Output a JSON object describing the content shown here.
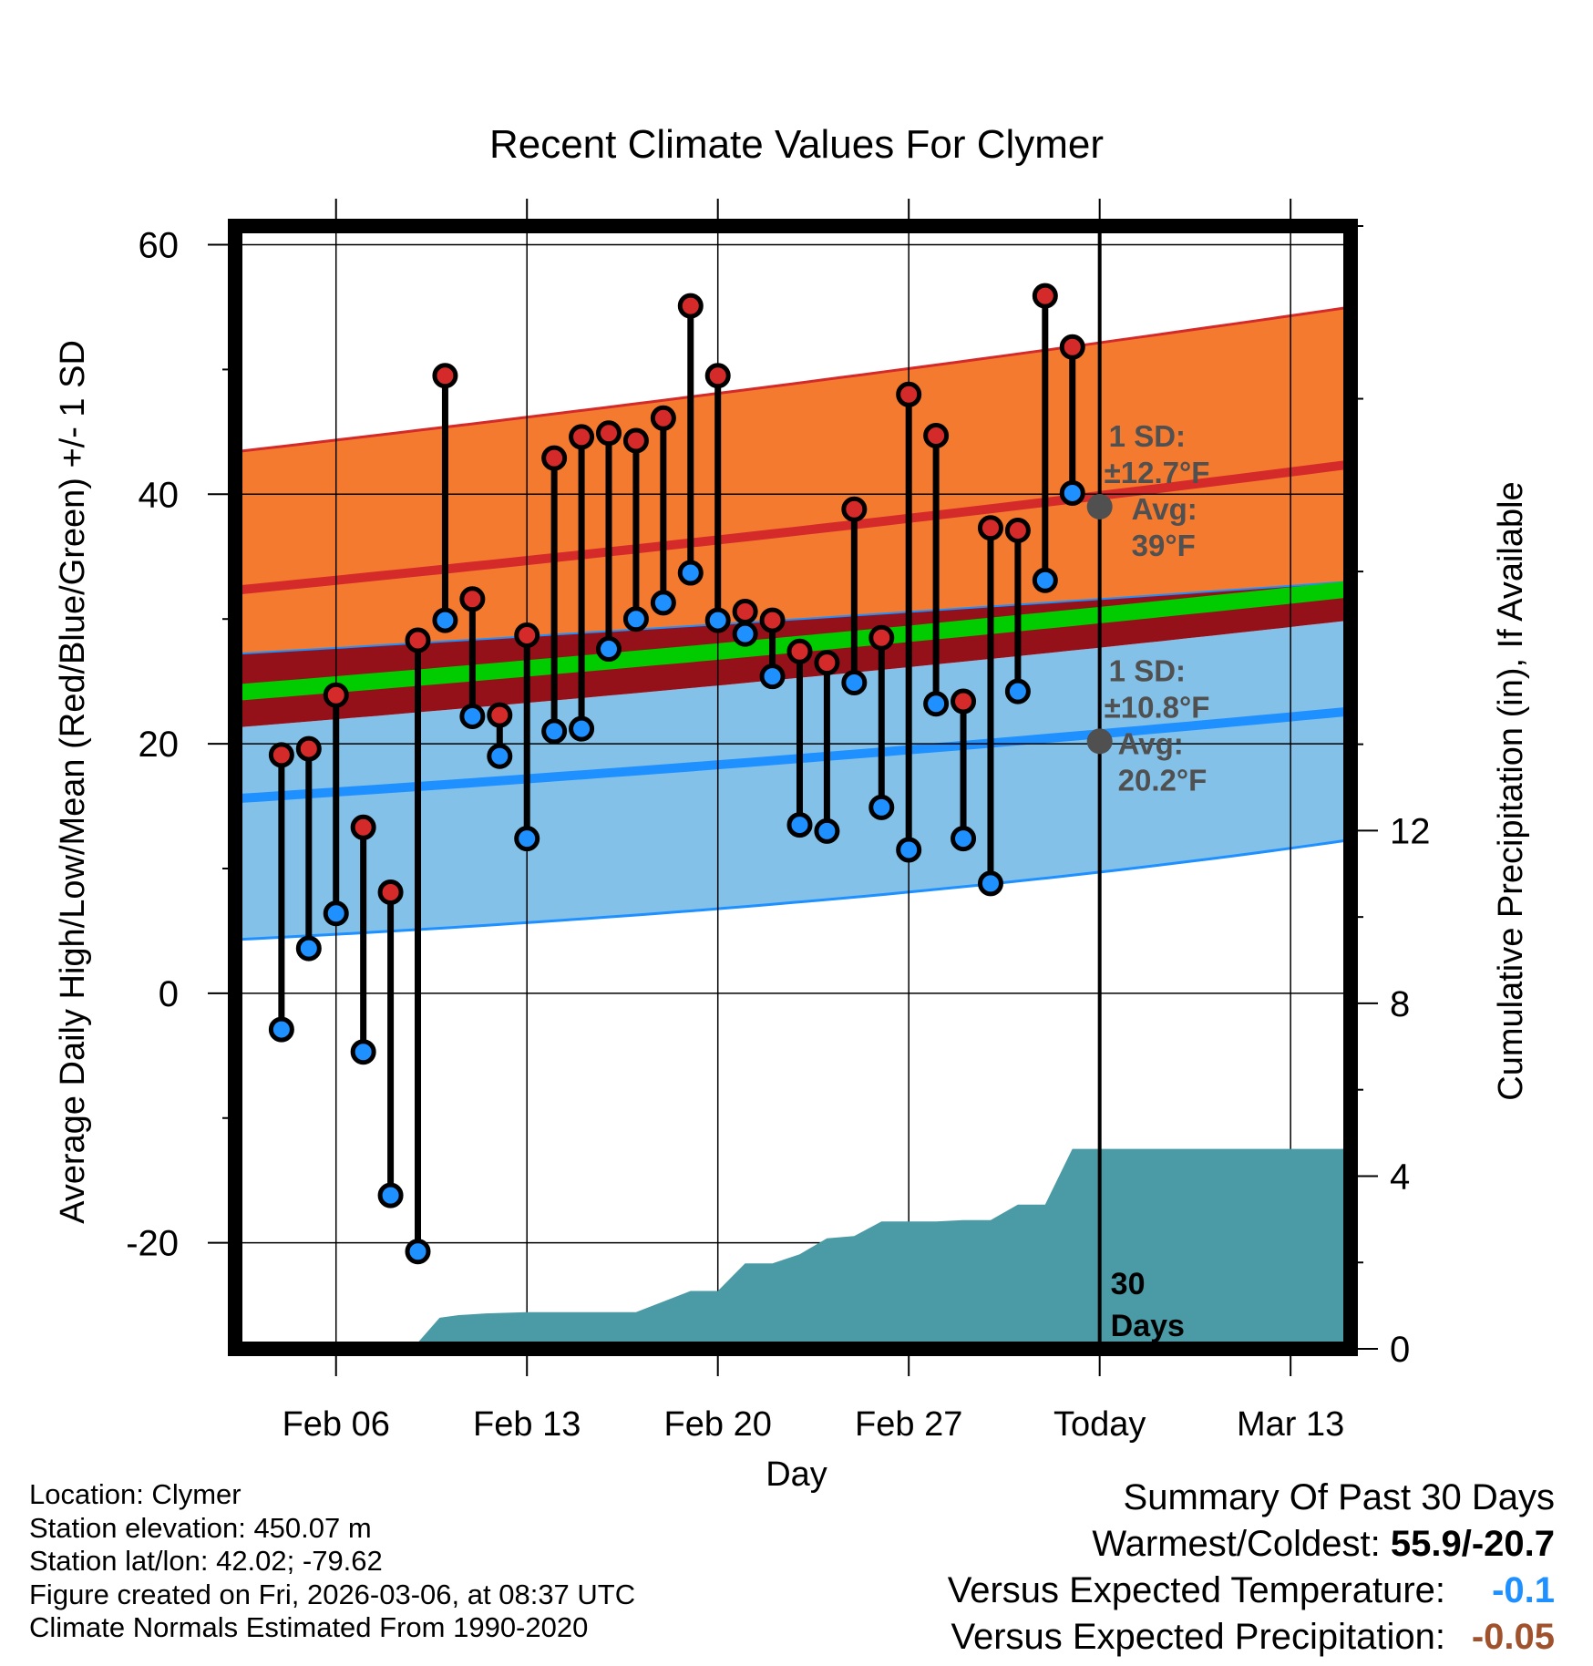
{
  "chart_data": {
    "type": "line",
    "title": "Recent Climate Values For Clymer",
    "xlabel": "Day",
    "ylabel": "Average Daily High/Low/Mean (Red/Blue/Green) +/- 1 SD",
    "y2label": "Cumulative Precipitation (in), If Available",
    "ylim": [
      -28.5,
      61.5
    ],
    "y2lim": [
      0,
      26
    ],
    "yticks": [
      "60",
      "40",
      "20",
      "0",
      "-20"
    ],
    "yticks_values": [
      60,
      40,
      20,
      0,
      -20
    ],
    "y2ticks": [
      "12",
      "8",
      "4",
      "0"
    ],
    "y2ticks_values": [
      12,
      8,
      4,
      0
    ],
    "xlim": [
      2.3,
      43.2
    ],
    "xticks": [
      "Feb 06",
      "Feb 13",
      "Feb 20",
      "Feb 27",
      "Today",
      "Mar 13"
    ],
    "xticks_days": [
      6,
      13,
      20,
      27,
      34,
      41
    ],
    "today_day": 34,
    "colors": {
      "high_band": "#f47a30",
      "high_line": "#d42a2a",
      "low_band": "#83c1e8",
      "low_line": "#1e90ff",
      "mean_band": "#95111a",
      "mean_line": "#00cc00",
      "precip": "#4a9ba6",
      "high_point": "#d42a2a",
      "low_point": "#1e90ff",
      "annotation": "#505050"
    },
    "normals": {
      "days": [
        2.3,
        43.2
      ],
      "high_avg": [
        32.3,
        42.4
      ],
      "high_upper": [
        43.4,
        55.0
      ],
      "low_avg": [
        15.6,
        22.6
      ],
      "low_lower": [
        4.3,
        12.3
      ],
      "mean_avg": [
        24.1,
        32.4
      ],
      "mean_upper": [
        27.2,
        33.0
      ],
      "mean_lower": [
        21.3,
        29.9
      ]
    },
    "daily": {
      "days": [
        4,
        5,
        6,
        7,
        8,
        9,
        10,
        11,
        12,
        13,
        14,
        15,
        16,
        17,
        18,
        19,
        20,
        21,
        22,
        23,
        24,
        25,
        26,
        27,
        28,
        29,
        30,
        31,
        32,
        33
      ],
      "highs": [
        19.1,
        19.6,
        23.9,
        13.3,
        8.1,
        28.3,
        49.5,
        31.6,
        22.3,
        28.7,
        42.9,
        44.6,
        44.9,
        44.3,
        46.1,
        55.1,
        49.5,
        30.6,
        29.9,
        27.4,
        26.5,
        38.8,
        28.5,
        48.0,
        44.7,
        23.4,
        37.3,
        37.1,
        55.9,
        51.8
      ],
      "lows": [
        -2.9,
        3.6,
        6.4,
        -4.7,
        -16.2,
        -20.7,
        29.9,
        22.2,
        19.0,
        12.4,
        21.0,
        21.2,
        27.6,
        30.0,
        31.3,
        33.7,
        29.9,
        28.8,
        25.4,
        13.5,
        13.0,
        24.9,
        14.9,
        11.5,
        23.2,
        12.4,
        8.8,
        24.2,
        33.1,
        40.1
      ]
    },
    "precip": {
      "days": [
        2.3,
        5.5,
        8.8,
        9.8,
        10.5,
        11.5,
        13.0,
        15.0,
        17.0,
        19.0,
        20.0,
        21.0,
        22.0,
        23.0,
        24.0,
        25.0,
        26.0,
        27.0,
        28.0,
        29.0,
        30.0,
        31.0,
        32.0,
        33.0,
        34.0,
        43.2
      ],
      "values": [
        0,
        0,
        0,
        0.72,
        0.78,
        0.82,
        0.85,
        0.85,
        0.85,
        1.34,
        1.34,
        1.98,
        1.98,
        2.19,
        2.56,
        2.61,
        2.95,
        2.95,
        2.95,
        2.98,
        2.98,
        3.34,
        3.34,
        4.63,
        4.63,
        4.63
      ]
    },
    "annotations": {
      "high_sd_label": "1 SD:",
      "high_sd_value": "±12.7°F",
      "high_avg_label": "Avg:",
      "high_avg_value": "39°F",
      "high_avg_temp": 39,
      "low_sd_label": "1 SD:",
      "low_sd_value": "±10.8°F",
      "low_avg_label": "Avg:",
      "low_avg_value": "20.2°F",
      "low_avg_temp": 20.2,
      "days_label_1": "30",
      "days_label_2": "Days"
    }
  },
  "footer": {
    "location": "Location: Clymer",
    "elevation": "Station elevation: 450.07 m",
    "latlon": "Station lat/lon: 42.02; -79.62",
    "created": "Figure created on Fri, 2026-03-06, at 08:37 UTC",
    "normals": "Climate Normals Estimated From 1990-2020"
  },
  "summary": {
    "title": "Summary Of Past 30 Days",
    "warm_cold_label": "Warmest/Coldest:",
    "warm_cold_value": "55.9/-20.7",
    "temp_label": "Versus Expected Temperature:",
    "temp_value": "-0.1",
    "precip_label": "Versus Expected Precipitation:",
    "precip_value": "-0.05"
  }
}
